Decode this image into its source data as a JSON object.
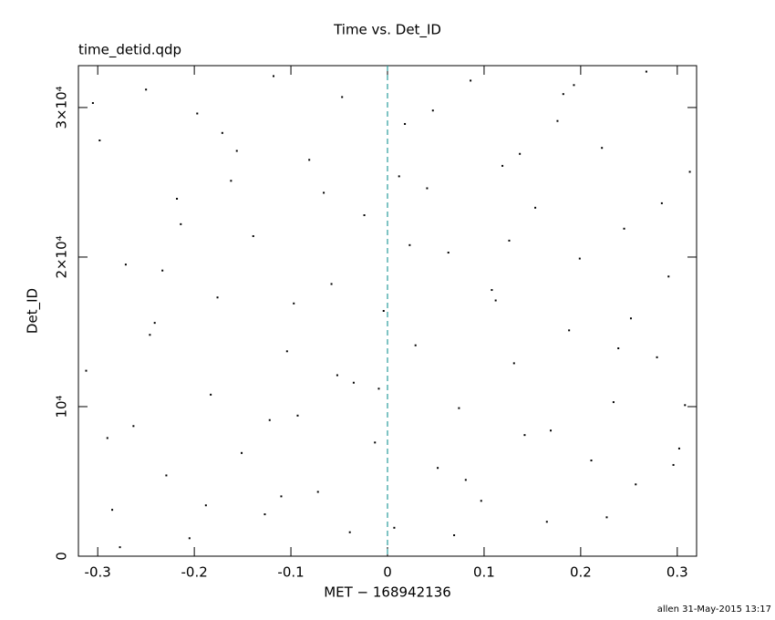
{
  "chart_data": {
    "type": "scatter",
    "title": "Time vs. Det_ID",
    "subtitle": "time_detid.qdp",
    "x_label": "MET − 168942136",
    "y_label": "Det_ID",
    "footer": "allen 31-May-2015 13:17",
    "xlim": [
      -0.32,
      0.32
    ],
    "ylim": [
      0,
      32800
    ],
    "xticks": [
      -0.3,
      -0.2,
      -0.1,
      0,
      0.1,
      0.2,
      0.3
    ],
    "yticks": [
      0,
      {
        "value": 10000,
        "label": "10⁴"
      },
      {
        "value": 20000,
        "label": "2×10⁴"
      },
      {
        "value": 30000,
        "label": "3×10⁴"
      }
    ],
    "vline": {
      "x": 0,
      "color": "#2a9d9d"
    },
    "series": [
      {
        "color": "#000000",
        "x": [
          -0.312,
          -0.298,
          -0.285,
          -0.271,
          -0.263,
          -0.25,
          -0.241,
          -0.229,
          -0.218,
          -0.205,
          -0.197,
          -0.183,
          -0.176,
          -0.162,
          -0.151,
          -0.139,
          -0.127,
          -0.118,
          -0.104,
          -0.093,
          -0.081,
          -0.072,
          -0.058,
          -0.047,
          -0.035,
          -0.024,
          -0.013,
          -0.004,
          0.007,
          0.018,
          0.029,
          0.041,
          0.052,
          0.063,
          0.074,
          0.086,
          0.097,
          0.108,
          0.119,
          0.131,
          0.142,
          0.153,
          0.165,
          0.176,
          0.188,
          0.199,
          0.211,
          0.222,
          0.234,
          0.245,
          0.257,
          0.268,
          0.279,
          0.291,
          0.302,
          0.313,
          -0.305,
          -0.277,
          -0.246,
          -0.214,
          -0.188,
          -0.156,
          -0.122,
          -0.097,
          -0.066,
          -0.039,
          -0.009,
          0.023,
          0.047,
          0.081,
          0.112,
          0.137,
          0.169,
          0.193,
          0.227,
          0.252,
          0.284,
          0.308,
          -0.29,
          -0.233,
          -0.171,
          -0.11,
          -0.052,
          0.012,
          0.069,
          0.126,
          0.182,
          0.239,
          0.296
        ],
        "values": [
          12400,
          27800,
          3100,
          19500,
          8700,
          31200,
          15600,
          5400,
          23900,
          1200,
          29600,
          10800,
          17300,
          25100,
          6900,
          21400,
          2800,
          32100,
          13700,
          9400,
          26500,
          4300,
          18200,
          30700,
          11600,
          22800,
          7600,
          16400,
          1900,
          28900,
          14100,
          24600,
          5900,
          20300,
          9900,
          31800,
          3700,
          17800,
          26100,
          12900,
          8100,
          23300,
          2300,
          29100,
          15100,
          19900,
          6400,
          27300,
          10300,
          21900,
          4800,
          32400,
          13300,
          18700,
          7200,
          25700,
          30300,
          600,
          14800,
          22200,
          3400,
          27100,
          9100,
          16900,
          24300,
          1600,
          11200,
          20800,
          29800,
          5100,
          17100,
          26900,
          8400,
          31500,
          2600,
          15900,
          23600,
          10100,
          7900,
          19100,
          28300,
          4000,
          12100,
          25400,
          1400,
          21100,
          30900,
          13900,
          6100
        ]
      }
    ]
  }
}
